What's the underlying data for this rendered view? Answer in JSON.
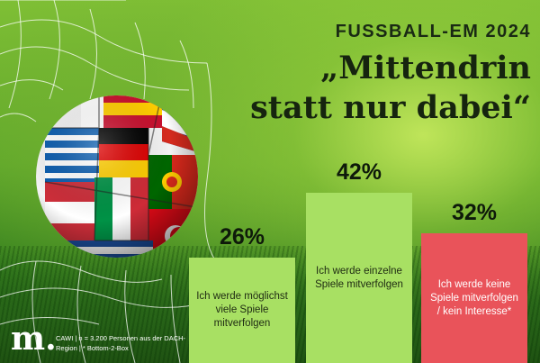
{
  "header": {
    "kicker": "FUSSBALL-EM 2024",
    "headline_line1": "„Mittendrin",
    "headline_line2": "statt nur dabei“"
  },
  "chart_data": {
    "type": "bar",
    "categories": [
      "Ich werde möglichst viele Spiele mitverfolgen",
      "Ich werde einzelne Spiele mitverfolgen",
      "Ich werde keine Spiele mitverfolgen / kein Interesse*"
    ],
    "values": [
      26,
      42,
      32
    ],
    "value_labels": [
      "26%",
      "42%",
      "32%"
    ],
    "unit": "%",
    "ylim": [
      0,
      50
    ],
    "colors": [
      "#a8e063",
      "#a8e063",
      "#e9535a"
    ]
  },
  "bars": [
    {
      "label": "Ich werde möglichst viele Spiele mitverfolgen",
      "color": "#a8e063"
    },
    {
      "label": "Ich werde einzelne Spiele mitverfolgen",
      "color": "#a8e063"
    },
    {
      "label": "Ich werde keine Spiele mitverfolgen / kein Interesse*",
      "color": "#e9535a"
    }
  ],
  "footer": {
    "logo": "m",
    "note": "CAWI | n = 3.200 Personen aus der DACH-Region | * Bottom-2-Box"
  }
}
